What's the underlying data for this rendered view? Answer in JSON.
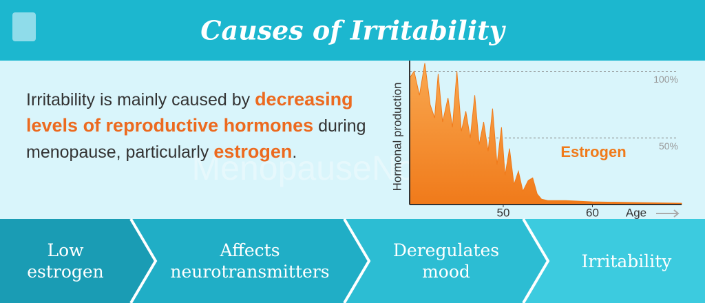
{
  "header": {
    "title": "Causes of Irritability"
  },
  "watermark": "MenopauseNow.com",
  "body": {
    "segments": [
      {
        "text": "Irritability is mainly caused by ",
        "emphasis": false
      },
      {
        "text": "decreasing levels of reproductive hormones",
        "emphasis": true
      },
      {
        "text": " during menopause, particularly ",
        "emphasis": false
      },
      {
        "text": "estrogen",
        "emphasis": true
      },
      {
        "text": ".",
        "emphasis": false
      }
    ]
  },
  "chart_data": {
    "type": "area",
    "ylabel": "Hormonal production",
    "xlabel": "Age",
    "x": [
      39.5,
      40.0,
      40.6,
      41.2,
      41.8,
      42.3,
      42.7,
      43.2,
      43.8,
      44.3,
      44.8,
      45.3,
      45.8,
      46.3,
      46.8,
      47.3,
      47.8,
      48.3,
      48.8,
      49.3,
      49.8,
      50.2,
      50.7,
      51.2,
      51.7,
      52.2,
      52.8,
      53.3,
      53.8,
      54.3,
      55,
      57,
      60,
      65,
      70
    ],
    "series": [
      {
        "name": "Estrogen",
        "color": "#f07a1a",
        "values": [
          95,
          100,
          82,
          106,
          75,
          65,
          98,
          62,
          80,
          58,
          100,
          55,
          70,
          50,
          82,
          45,
          62,
          40,
          72,
          30,
          58,
          22,
          42,
          15,
          25,
          10,
          18,
          20,
          8,
          4,
          3,
          3,
          2,
          1.5,
          1
        ]
      }
    ],
    "xlim": [
      39.5,
      70
    ],
    "ylim": [
      0,
      108
    ],
    "xticks": [
      50,
      60
    ],
    "yticks": [
      {
        "value": 50,
        "label": "50%"
      },
      {
        "value": 100,
        "label": "100%"
      }
    ],
    "grid": true
  },
  "steps": [
    "Low estrogen",
    "Affects neurotransmitters",
    "Deregulates mood",
    "Irritability"
  ]
}
